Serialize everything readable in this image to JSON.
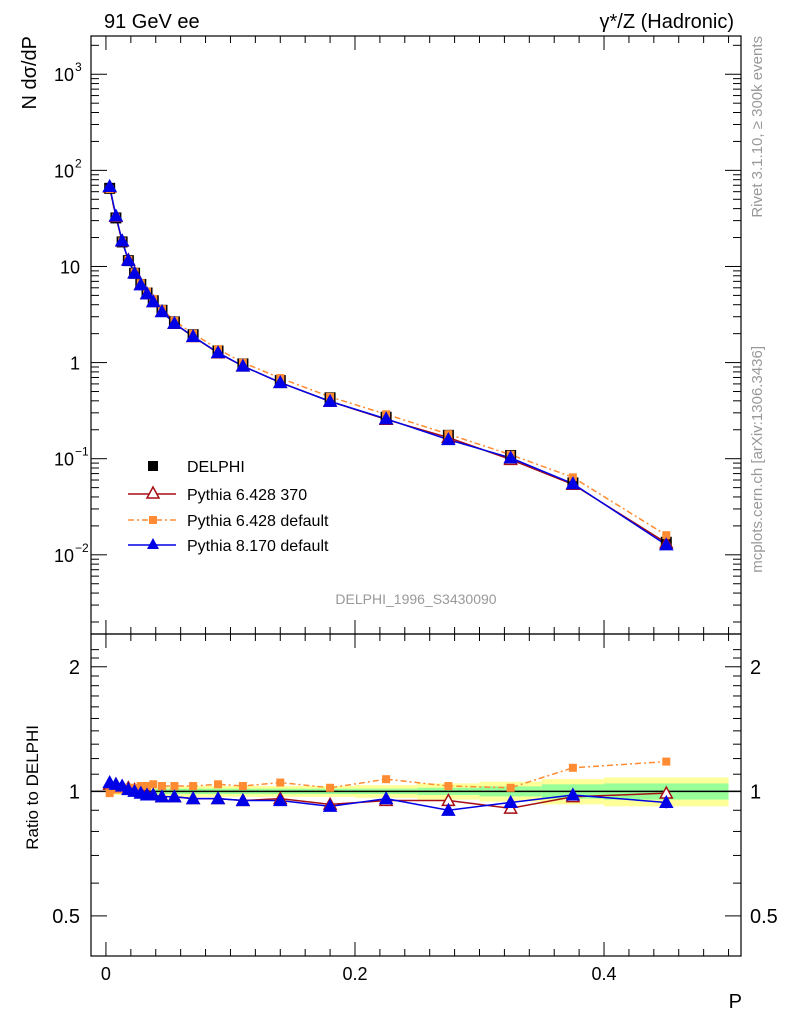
{
  "labels": {
    "energy": "91 GeV ee",
    "process": "γ*/Z (Hadronic)",
    "main_ylabel": "N dσ/dP",
    "ratio_ylabel": "Ratio to DELPHI",
    "xlabel": "P",
    "side_rivet": "Rivet 3.1.10, ≥ 300k events",
    "side_mcplots": "mcplots.cern.ch [arXiv:1306.3436]",
    "analysis_id": "DELPHI_1996_S3430090"
  },
  "legend": [
    {
      "label": "DELPHI",
      "marker": "square",
      "color": "#000000"
    },
    {
      "label": "Pythia 6.428 370",
      "marker": "open-triangle",
      "color": "#a50f15"
    },
    {
      "label": "Pythia 6.428 default",
      "marker": "square",
      "color": "#ff8c32"
    },
    {
      "label": "Pythia 8.170 default",
      "marker": "triangle",
      "color": "#0000e6"
    }
  ],
  "chart_data": [
    {
      "type": "line",
      "panel": "main",
      "log_y": true,
      "xlim": [
        -0.012,
        0.51
      ],
      "ylim": [
        0.0015,
        2500
      ],
      "xticks": [
        "0",
        "0.2",
        "0.4"
      ],
      "yticks": [
        "10^-2",
        "10^-1",
        "1",
        "10",
        "10^2",
        "10^3"
      ],
      "x": [
        0.003,
        0.008,
        0.013,
        0.018,
        0.023,
        0.028,
        0.033,
        0.038,
        0.045,
        0.055,
        0.07,
        0.09,
        0.11,
        0.14,
        0.18,
        0.225,
        0.275,
        0.325,
        0.375,
        0.45
      ],
      "series": [
        {
          "name": "DELPHI",
          "color": "#000000",
          "values": [
            65,
            32,
            18,
            11.5,
            8.5,
            6.5,
            5.3,
            4.4,
            3.5,
            2.65,
            1.95,
            1.32,
            0.97,
            0.65,
            0.43,
            0.27,
            0.175,
            0.108,
            0.056,
            0.0135
          ]
        },
        {
          "name": "Pythia 6.428 370",
          "color": "#a50f15",
          "values": [
            67,
            33,
            18.4,
            11.7,
            8.6,
            6.5,
            5.2,
            4.3,
            3.4,
            2.55,
            1.86,
            1.26,
            0.92,
            0.62,
            0.395,
            0.256,
            0.166,
            0.098,
            0.054,
            0.0133
          ]
        },
        {
          "name": "Pythia 6.428 default",
          "color": "#ff8c32",
          "values": [
            64,
            32.2,
            18.2,
            11.7,
            8.7,
            6.7,
            5.5,
            4.6,
            3.6,
            2.72,
            2.0,
            1.38,
            1.0,
            0.69,
            0.44,
            0.29,
            0.18,
            0.11,
            0.064,
            0.016
          ]
        },
        {
          "name": "Pythia 8.170 default",
          "color": "#0000e6",
          "values": [
            68,
            33.5,
            18.5,
            11.6,
            8.5,
            6.45,
            5.2,
            4.3,
            3.38,
            2.56,
            1.87,
            1.27,
            0.92,
            0.62,
            0.395,
            0.26,
            0.158,
            0.102,
            0.055,
            0.0127
          ]
        }
      ]
    },
    {
      "type": "line",
      "panel": "ratio",
      "log_y": true,
      "xlim": [
        -0.012,
        0.51
      ],
      "ylim": [
        0.4,
        2.4
      ],
      "xlabel": "P",
      "yticks": [
        "0.5",
        "1",
        "2"
      ],
      "x": [
        0.003,
        0.008,
        0.013,
        0.018,
        0.023,
        0.028,
        0.033,
        0.038,
        0.045,
        0.055,
        0.07,
        0.09,
        0.11,
        0.14,
        0.18,
        0.225,
        0.275,
        0.325,
        0.375,
        0.45
      ],
      "bin_edges": [
        0,
        0.005,
        0.01,
        0.015,
        0.02,
        0.025,
        0.03,
        0.035,
        0.04,
        0.05,
        0.06,
        0.08,
        0.1,
        0.12,
        0.16,
        0.2,
        0.25,
        0.3,
        0.35,
        0.4,
        0.5
      ],
      "band_inner_half": [
        0.012,
        0.012,
        0.012,
        0.012,
        0.012,
        0.012,
        0.012,
        0.012,
        0.015,
        0.015,
        0.015,
        0.015,
        0.015,
        0.015,
        0.015,
        0.015,
        0.02,
        0.028,
        0.04,
        0.045
      ],
      "band_outer_half": [
        0.02,
        0.02,
        0.02,
        0.02,
        0.02,
        0.02,
        0.02,
        0.02,
        0.025,
        0.025,
        0.03,
        0.03,
        0.03,
        0.03,
        0.03,
        0.035,
        0.045,
        0.055,
        0.07,
        0.08
      ],
      "series": [
        {
          "name": "Pythia 6.428 370",
          "color": "#a50f15",
          "values": [
            1.04,
            1.04,
            1.02,
            1.02,
            1.01,
            1.0,
            0.99,
            0.98,
            0.97,
            0.97,
            0.96,
            0.96,
            0.95,
            0.96,
            0.93,
            0.95,
            0.95,
            0.91,
            0.97,
            0.99
          ]
        },
        {
          "name": "Pythia 6.428 default",
          "color": "#ff8c32",
          "values": [
            0.99,
            1.01,
            1.01,
            1.02,
            1.02,
            1.03,
            1.03,
            1.04,
            1.03,
            1.03,
            1.03,
            1.04,
            1.03,
            1.05,
            1.02,
            1.07,
            1.03,
            1.02,
            1.14,
            1.18
          ]
        },
        {
          "name": "Pythia 8.170 default",
          "color": "#0000e6",
          "values": [
            1.05,
            1.04,
            1.03,
            1.01,
            1.0,
            0.99,
            0.98,
            0.98,
            0.97,
            0.97,
            0.96,
            0.96,
            0.95,
            0.95,
            0.92,
            0.96,
            0.9,
            0.94,
            0.98,
            0.94
          ]
        }
      ]
    }
  ]
}
